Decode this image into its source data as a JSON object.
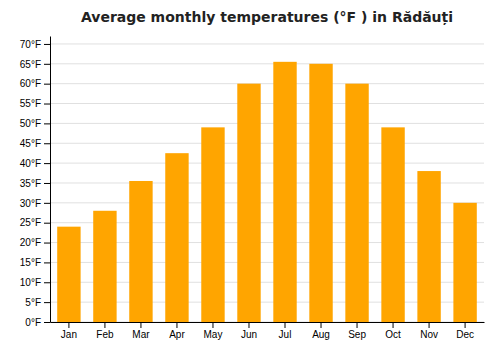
{
  "chart_data": {
    "type": "bar",
    "title": "Average monthly temperatures (°F ) in Rădăuți",
    "categories": [
      "Jan",
      "Feb",
      "Mar",
      "Apr",
      "May",
      "Jun",
      "Jul",
      "Aug",
      "Sep",
      "Oct",
      "Nov",
      "Dec"
    ],
    "values": [
      24.0,
      28.0,
      35.5,
      42.5,
      49.0,
      60.0,
      65.5,
      65.0,
      60.0,
      49.0,
      38.0,
      30.0
    ],
    "color": "#FFA500",
    "ylim": [
      0,
      72
    ],
    "yticks": [
      {
        "value": 0,
        "label": "0°F"
      },
      {
        "value": 5,
        "label": "5°F"
      },
      {
        "value": 10,
        "label": "10°F"
      },
      {
        "value": 15,
        "label": "15°F"
      },
      {
        "value": 20,
        "label": "20°F"
      },
      {
        "value": 25,
        "label": "25°F"
      },
      {
        "value": 30,
        "label": "30°F"
      },
      {
        "value": 35,
        "label": "35°F"
      },
      {
        "value": 40,
        "label": "40°F"
      },
      {
        "value": 45,
        "label": "45°F"
      },
      {
        "value": 50,
        "label": "50°F"
      },
      {
        "value": 55,
        "label": "55°F"
      },
      {
        "value": 60,
        "label": "60°F"
      },
      {
        "value": 65,
        "label": "65°F"
      },
      {
        "value": 70,
        "label": "70°F"
      }
    ],
    "grid": true
  }
}
